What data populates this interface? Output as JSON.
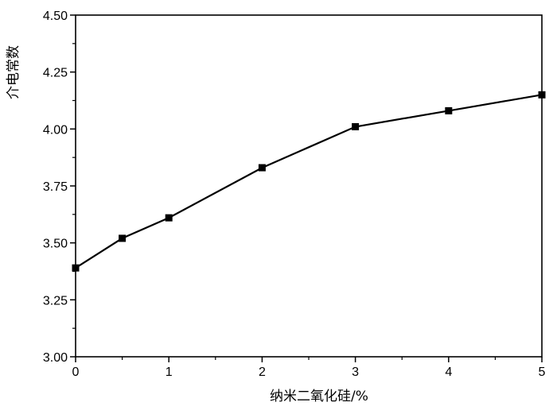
{
  "chart_data": {
    "type": "line",
    "xlabel": "纳米二氧化硅/%",
    "ylabel": "介电常数",
    "xlim": [
      0,
      5
    ],
    "ylim": [
      3.0,
      4.5
    ],
    "x_ticks": [
      "0",
      "1",
      "2",
      "3",
      "4",
      "5"
    ],
    "y_ticks": [
      "3.00",
      "3.25",
      "3.50",
      "3.75",
      "4.00",
      "4.25",
      "4.50"
    ],
    "marker": "square",
    "grid": false,
    "series": [
      {
        "x": [
          0,
          0.5,
          1,
          2,
          3,
          4,
          5
        ],
        "y": [
          3.39,
          3.52,
          3.61,
          3.83,
          4.01,
          4.08,
          4.15
        ]
      }
    ]
  }
}
